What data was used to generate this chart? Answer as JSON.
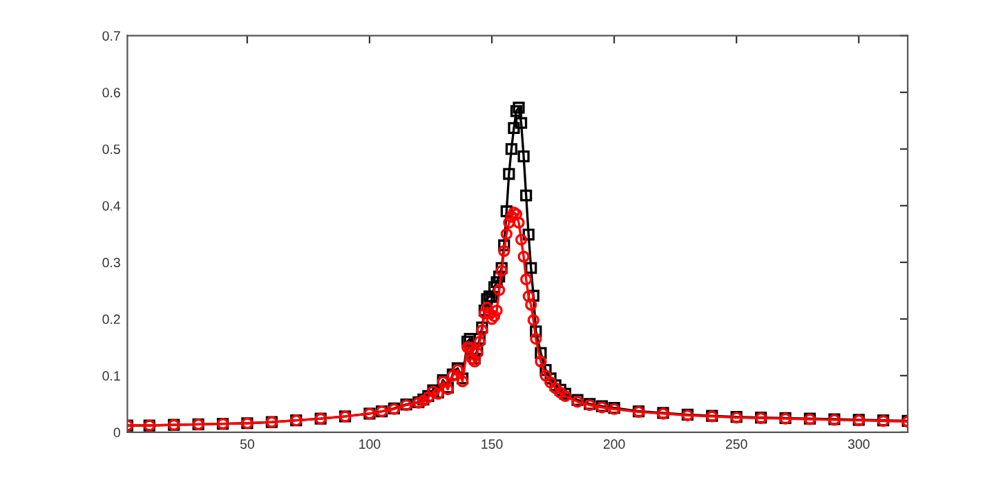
{
  "chart_data": {
    "type": "line",
    "xlim": [
      1,
      320
    ],
    "ylim": [
      0,
      0.7
    ],
    "xticks": [
      50,
      100,
      150,
      200,
      250,
      300
    ],
    "yticks": [
      0,
      0.1,
      0.2,
      0.3,
      0.4,
      0.5,
      0.6,
      0.7
    ],
    "grid": false,
    "line_style": "solid",
    "x": [
      1,
      10,
      20,
      30,
      40,
      50,
      60,
      70,
      80,
      90,
      100,
      105,
      110,
      115,
      120,
      122,
      124,
      126,
      128,
      130,
      132,
      134,
      136,
      138,
      140,
      141,
      142,
      143,
      144,
      145,
      146,
      147,
      148,
      149,
      150,
      151,
      152,
      153,
      154,
      155,
      156,
      157,
      158,
      159,
      160,
      161,
      162,
      163,
      164,
      165,
      166,
      167,
      168,
      170,
      172,
      174,
      176,
      178,
      180,
      185,
      190,
      195,
      200,
      210,
      220,
      230,
      240,
      250,
      260,
      270,
      280,
      290,
      300,
      310,
      320
    ],
    "series": [
      {
        "color": "#000000",
        "marker": "square",
        "values": [
          0.012,
          0.012,
          0.013,
          0.014,
          0.015,
          0.016,
          0.018,
          0.021,
          0.024,
          0.028,
          0.033,
          0.037,
          0.042,
          0.049,
          0.053,
          0.058,
          0.064,
          0.074,
          0.07,
          0.092,
          0.079,
          0.102,
          0.113,
          0.095,
          0.16,
          0.165,
          0.14,
          0.13,
          0.145,
          0.165,
          0.185,
          0.215,
          0.235,
          0.24,
          0.239,
          0.256,
          0.265,
          0.275,
          0.29,
          0.33,
          0.39,
          0.456,
          0.5,
          0.537,
          0.567,
          0.573,
          0.546,
          0.487,
          0.418,
          0.349,
          0.29,
          0.241,
          0.178,
          0.14,
          0.11,
          0.095,
          0.083,
          0.075,
          0.068,
          0.057,
          0.05,
          0.046,
          0.043,
          0.037,
          0.034,
          0.031,
          0.029,
          0.027,
          0.026,
          0.025,
          0.024,
          0.023,
          0.022,
          0.021,
          0.02
        ]
      },
      {
        "color": "#ff0000",
        "marker": "circle",
        "values": [
          0.012,
          0.012,
          0.013,
          0.014,
          0.015,
          0.016,
          0.018,
          0.021,
          0.024,
          0.028,
          0.033,
          0.037,
          0.041,
          0.048,
          0.052,
          0.056,
          0.062,
          0.072,
          0.068,
          0.089,
          0.076,
          0.1,
          0.11,
          0.09,
          0.15,
          0.15,
          0.13,
          0.125,
          0.14,
          0.16,
          0.18,
          0.21,
          0.22,
          0.21,
          0.2,
          0.205,
          0.215,
          0.251,
          0.285,
          0.32,
          0.35,
          0.37,
          0.38,
          0.388,
          0.385,
          0.37,
          0.34,
          0.31,
          0.27,
          0.24,
          0.225,
          0.198,
          0.165,
          0.125,
          0.1,
          0.088,
          0.078,
          0.07,
          0.064,
          0.054,
          0.048,
          0.044,
          0.041,
          0.036,
          0.033,
          0.03,
          0.028,
          0.026,
          0.025,
          0.024,
          0.023,
          0.022,
          0.021,
          0.02,
          0.019
        ]
      }
    ]
  }
}
